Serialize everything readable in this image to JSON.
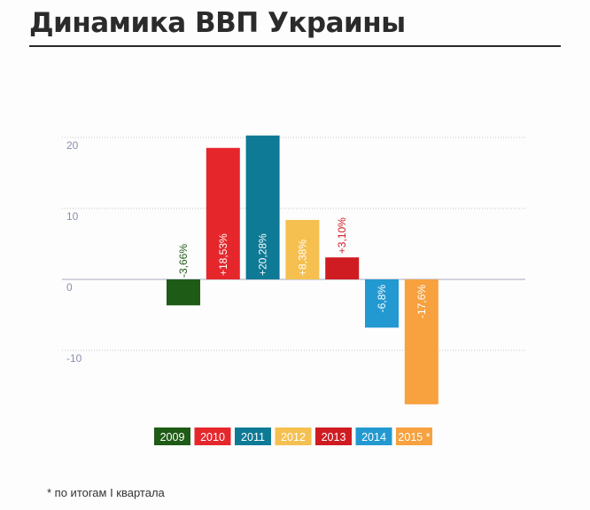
{
  "title": "Динамика ВВП Украины",
  "footnote": "* по итогам I квартала",
  "chart_data": {
    "type": "bar",
    "title": "Динамика ВВП Украины",
    "xlabel": "",
    "ylabel": "",
    "ylim": [
      -20,
      20
    ],
    "yticks": [
      "20",
      "10",
      "0",
      "-10"
    ],
    "ytick_values": [
      20,
      10,
      0,
      -10
    ],
    "grid": true,
    "legend_placement": "bottom",
    "categories": [
      "2009",
      "2010",
      "2011",
      "2012",
      "2013",
      "2014",
      "2015 *"
    ],
    "values": [
      -3.66,
      18.53,
      20.28,
      8.38,
      3.1,
      -6.8,
      -17.6
    ],
    "data_labels": [
      "-3,66%",
      "+18,53%",
      "+20,28%",
      "+8,38%",
      "+3,10%",
      "-6,8%",
      "-17,6%"
    ],
    "colors": [
      "#1e5b16",
      "#e5272c",
      "#0e7a96",
      "#f5c04f",
      "#cf1c22",
      "#2399d1",
      "#f7a13f"
    ]
  }
}
